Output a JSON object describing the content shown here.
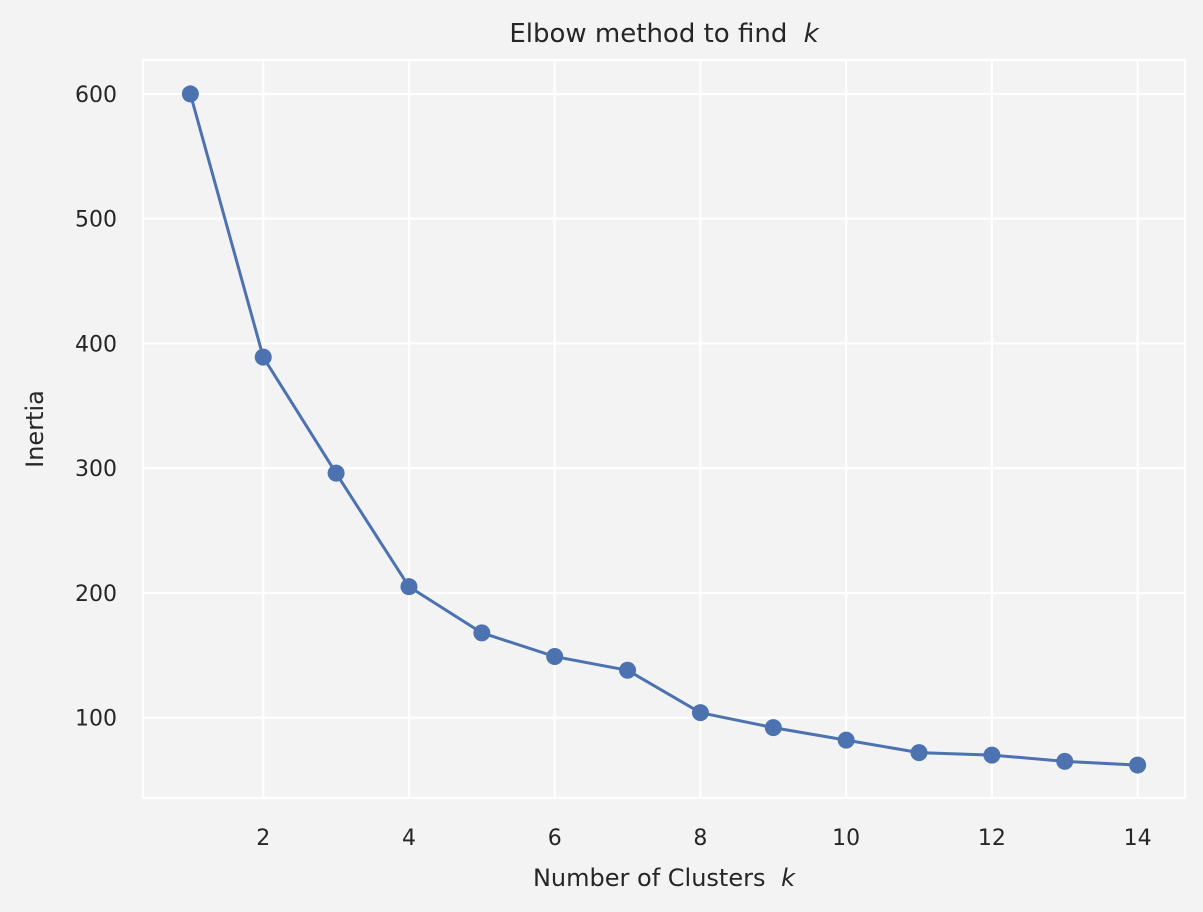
{
  "chart_data": {
    "type": "line",
    "title": "Elbow method to find",
    "title_var": "k",
    "xlabel": "Number of Clusters",
    "xlabel_var": "k",
    "ylabel": "Inertia",
    "x": [
      1,
      2,
      3,
      4,
      5,
      6,
      7,
      8,
      9,
      10,
      11,
      12,
      13,
      14
    ],
    "series": [
      {
        "values": [
          600,
          389,
          296,
          205,
          168,
          149,
          138,
          104,
          92,
          82,
          72,
          70,
          65,
          62
        ],
        "color": "#4c72b0",
        "marker": "circle"
      }
    ],
    "x_ticks": [
      2,
      4,
      6,
      8,
      10,
      12,
      14
    ],
    "y_ticks": [
      100,
      200,
      300,
      400,
      500,
      600
    ],
    "xlim": [
      0.35,
      14.65
    ],
    "ylim": [
      35.6,
      627.2
    ],
    "grid": true,
    "background": "#f3f3f4",
    "plot_background": "#f3f3f4",
    "grid_color": "#ffffff",
    "text_color": "#262626"
  }
}
